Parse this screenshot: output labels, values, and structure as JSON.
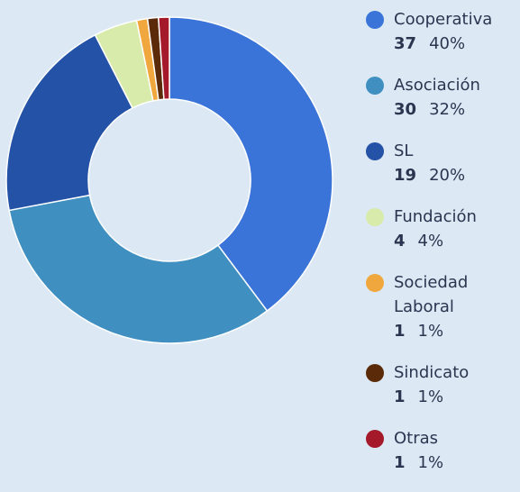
{
  "chart_data": {
    "type": "donut",
    "categories": [
      "Cooperativa",
      "Asociación",
      "SL",
      "Fundación",
      "Sociedad Laboral",
      "Sindicato",
      "Otras"
    ],
    "values": [
      37,
      30,
      19,
      4,
      1,
      1,
      1
    ],
    "percent_labels": [
      "40%",
      "32%",
      "20%",
      "4%",
      "1%",
      "1%",
      "1%"
    ],
    "colors": [
      "#3a74d8",
      "#3f8fc1",
      "#2352a6",
      "#d8ebab",
      "#f0a83e",
      "#5b2a08",
      "#a51a2a"
    ]
  }
}
